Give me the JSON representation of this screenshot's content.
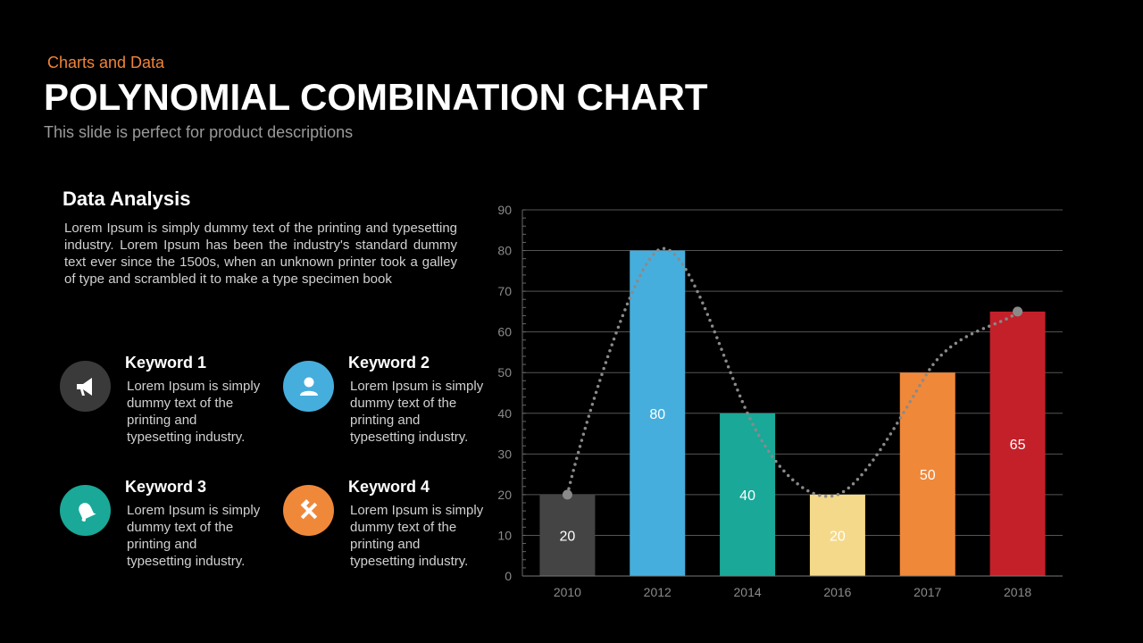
{
  "header": {
    "kicker": "Charts and Data",
    "title": "POLYNOMIAL COMBINATION CHART",
    "subtitle": "This slide is perfect for product descriptions"
  },
  "analysis": {
    "heading": "Data Analysis",
    "body": "Lorem Ipsum is simply dummy text of the printing and typesetting industry. Lorem Ipsum has been the industry's standard dummy text ever since the 1500s, when an unknown printer took a galley of type and scrambled it to make a type specimen book"
  },
  "keywords": [
    {
      "title": "Keyword 1",
      "text": "Lorem Ipsum is simply dummy text of the printing and typesetting industry.",
      "icon": "megaphone-icon",
      "color": "#3a3a3a"
    },
    {
      "title": "Keyword 2",
      "text": "Lorem Ipsum is simply dummy text of the printing and typesetting industry.",
      "icon": "user-icon",
      "color": "#46aedc"
    },
    {
      "title": "Keyword 3",
      "text": "Lorem Ipsum is simply dummy text of the printing and typesetting industry.",
      "icon": "bell-icon",
      "color": "#1aa898"
    },
    {
      "title": "Keyword 4",
      "text": "Lorem Ipsum is simply dummy text of the printing and typesetting industry.",
      "icon": "tools-icon",
      "color": "#f0883a"
    }
  ],
  "chart_data": {
    "type": "bar",
    "categories": [
      "2010",
      "2012",
      "2014",
      "2016",
      "2017",
      "2018"
    ],
    "values": [
      20,
      80,
      40,
      20,
      50,
      65
    ],
    "data_labels": [
      "20",
      "80",
      "40",
      "20",
      "50",
      "65"
    ],
    "colors": [
      "#444444",
      "#46aedc",
      "#1aa898",
      "#f5d98a",
      "#f0883a",
      "#c4202a"
    ],
    "trendline": "polynomial",
    "ylim": [
      0,
      90
    ],
    "yticks": [
      0,
      10,
      20,
      30,
      40,
      50,
      60,
      70,
      80,
      90
    ],
    "grid": true,
    "xlabel": "",
    "ylabel": "",
    "title": ""
  }
}
